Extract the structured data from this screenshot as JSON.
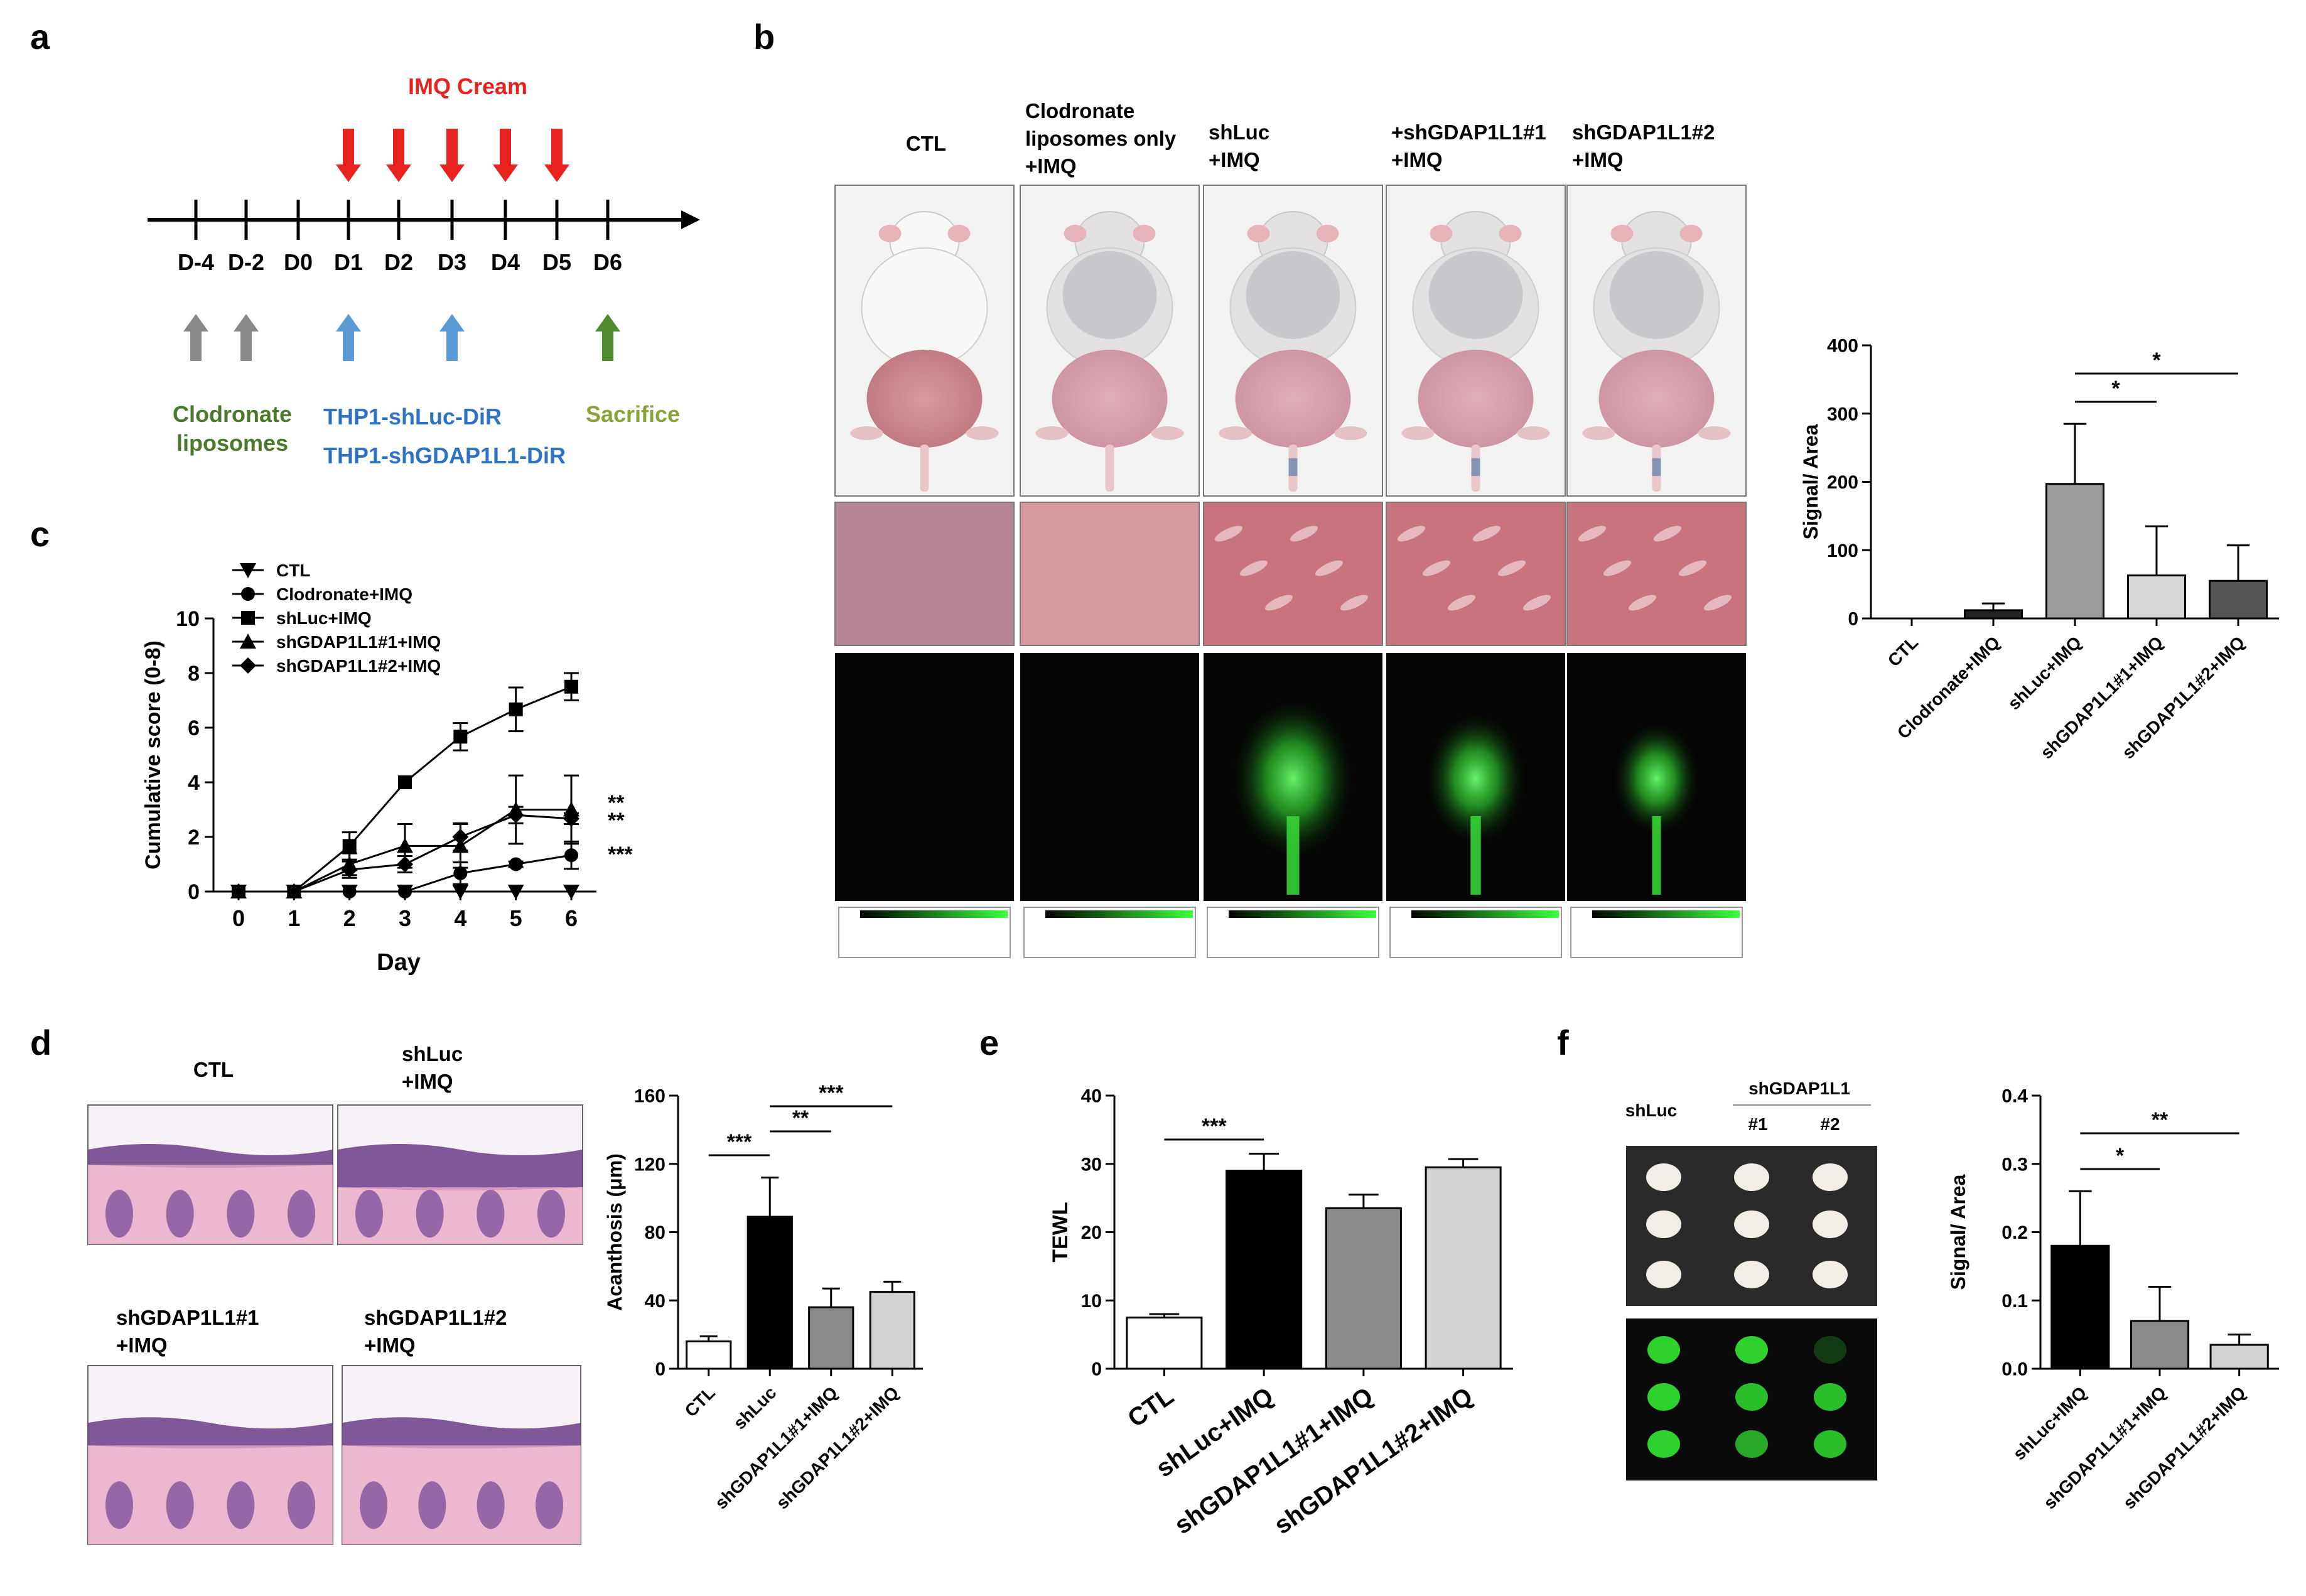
{
  "panels": {
    "a": "a",
    "b": "b",
    "c": "c",
    "d": "d",
    "e": "e",
    "f": "f"
  },
  "panel_a": {
    "cream_label": "IMQ Cream",
    "days": [
      "D-4",
      "D-2",
      "D0",
      "D1",
      "D2",
      "D3",
      "D4",
      "D5",
      "D6"
    ],
    "clodronate_label_1": "Clodronate",
    "clodronate_label_2": "liposomes",
    "thp1_label_1": "THP1-shLuc-DiR",
    "thp1_label_2": "THP1-shGDAP1L1-DiR",
    "sacrifice_label": "Sacrifice",
    "colors": {
      "cream": "#e8231f",
      "clodronate": "#888888",
      "thp1": "#5b9bd5",
      "sacrifice": "#4e8a2e",
      "green_text": "#4a7a2a",
      "blue_text": "#2d72c4",
      "olive_text": "#8aa43a"
    }
  },
  "panel_b": {
    "columns": [
      {
        "lines": [
          "CTL"
        ]
      },
      {
        "lines": [
          "Clodronate",
          "liposomes only",
          "+IMQ"
        ]
      },
      {
        "lines": [
          "shLuc",
          "+IMQ"
        ]
      },
      {
        "lines": [
          "+shGDAP1L1#1",
          "+IMQ"
        ]
      },
      {
        "lines": [
          "shGDAP1L1#2",
          "+IMQ"
        ]
      }
    ]
  },
  "panel_d": {
    "image_labels": [
      {
        "lines": [
          "CTL"
        ]
      },
      {
        "lines": [
          "shLuc",
          "+IMQ"
        ]
      },
      {
        "lines": [
          "shGDAP1L1#1",
          "+IMQ"
        ]
      },
      {
        "lines": [
          "shGDAP1L1#2",
          "+IMQ"
        ]
      }
    ]
  },
  "panel_f": {
    "col_header_left": "shLuc",
    "col_header_group": "shGDAP1L1",
    "sub_headers": [
      "#1",
      "#2"
    ]
  },
  "chart_data": [
    {
      "id": "c",
      "type": "line",
      "ylabel": "Cumulative score (0-8)",
      "xlabel": "Day",
      "x": [
        0,
        1,
        2,
        3,
        4,
        5,
        6
      ],
      "ylim": [
        0,
        10
      ],
      "yticks": [
        0,
        2,
        4,
        6,
        8,
        10
      ],
      "series": [
        {
          "name": "CTL",
          "marker": "triangle-down",
          "values": [
            0,
            0,
            0,
            0,
            0,
            0,
            0
          ],
          "errors": [
            0,
            0,
            0,
            0,
            0,
            0,
            0
          ]
        },
        {
          "name": "Clodronate+IMQ",
          "marker": "circle",
          "values": [
            0,
            0,
            0,
            0,
            0.67,
            1.0,
            1.33
          ],
          "errors": [
            0,
            0,
            0,
            0,
            0.4,
            0.1,
            0.5
          ]
        },
        {
          "name": "shLuc+IMQ",
          "marker": "square",
          "values": [
            0,
            0,
            1.67,
            4.0,
            5.67,
            6.67,
            7.5
          ],
          "errors": [
            0,
            0,
            0.5,
            0,
            0.5,
            0.8,
            0.5
          ]
        },
        {
          "name": "shGDAP1L1#1+IMQ",
          "marker": "triangle-up",
          "values": [
            0,
            0,
            1.0,
            1.67,
            1.67,
            3.0,
            3.0
          ],
          "errors": [
            0,
            0,
            0.4,
            0.8,
            0.8,
            1.25,
            1.25
          ]
        },
        {
          "name": "shGDAP1L1#2+IMQ",
          "marker": "diamond",
          "values": [
            0,
            0,
            0.8,
            1.0,
            2.0,
            2.8,
            2.67
          ],
          "errors": [
            0,
            0,
            0.3,
            0.3,
            0.5,
            0.3,
            0.2
          ]
        }
      ],
      "annotations": [
        "**",
        "**",
        "***"
      ]
    },
    {
      "id": "b",
      "type": "bar",
      "ylabel": "Signal/ Area",
      "categories": [
        "CTL",
        "Clodronate+IMQ",
        "shLuc+IMQ",
        "shGDAP1L1#1+IMQ",
        "shGDAP1L1#2+IMQ"
      ],
      "values": [
        0,
        12,
        197,
        63,
        55
      ],
      "errors": [
        0,
        10,
        88,
        72,
        52
      ],
      "colors": [
        "#ffffff",
        "#222222",
        "#9c9c9c",
        "#d7d7d7",
        "#555555"
      ],
      "ylim": [
        0,
        400
      ],
      "yticks": [
        0,
        100,
        200,
        300,
        400
      ],
      "significance": [
        {
          "from": 2,
          "to": 3,
          "label": "*"
        },
        {
          "from": 2,
          "to": 4,
          "label": "*"
        }
      ]
    },
    {
      "id": "d",
      "type": "bar",
      "ylabel": "Acanthosis (μm)",
      "categories": [
        "CTL",
        "shLuc",
        "shGDAP1L1#1+IMQ",
        "shGDAP1L1#2+IMQ"
      ],
      "values": [
        16,
        89,
        36,
        45
      ],
      "errors": [
        3,
        23,
        11,
        6
      ],
      "colors": [
        "#ffffff",
        "#000000",
        "#8a8a8a",
        "#d3d3d3"
      ],
      "ylim": [
        0,
        160
      ],
      "yticks": [
        0,
        40,
        80,
        120,
        160
      ],
      "significance": [
        {
          "from": 0,
          "to": 1,
          "label": "***"
        },
        {
          "from": 1,
          "to": 2,
          "label": "**"
        },
        {
          "from": 1,
          "to": 3,
          "label": "***"
        }
      ]
    },
    {
      "id": "e",
      "type": "bar",
      "ylabel": "TEWL",
      "categories": [
        "CTL",
        "shLuc+IMQ",
        "shGDAP1L1#1+IMQ",
        "shGDAP1L1#2+IMQ"
      ],
      "values": [
        7.5,
        29,
        23.5,
        29.5
      ],
      "errors": [
        0.5,
        2.5,
        2,
        1.2
      ],
      "colors": [
        "#ffffff",
        "#000000",
        "#8a8a8a",
        "#d3d3d3"
      ],
      "ylim": [
        0,
        40
      ],
      "yticks": [
        0,
        10,
        20,
        30,
        40
      ],
      "significance": [
        {
          "from": 0,
          "to": 1,
          "label": "***"
        }
      ]
    },
    {
      "id": "f",
      "type": "bar",
      "ylabel": "Signal/ Area",
      "categories": [
        "shLuc+IMQ",
        "shGDAP1L1#1+IMQ",
        "shGDAP1L1#2+IMQ"
      ],
      "values": [
        0.18,
        0.07,
        0.035
      ],
      "errors": [
        0.08,
        0.05,
        0.015
      ],
      "colors": [
        "#000000",
        "#8a8a8a",
        "#d3d3d3"
      ],
      "ylim": [
        0,
        0.4
      ],
      "yticks": [
        0.0,
        0.1,
        0.2,
        0.3,
        0.4
      ],
      "significance": [
        {
          "from": 0,
          "to": 1,
          "label": "*"
        },
        {
          "from": 0,
          "to": 2,
          "label": "**"
        }
      ]
    }
  ]
}
